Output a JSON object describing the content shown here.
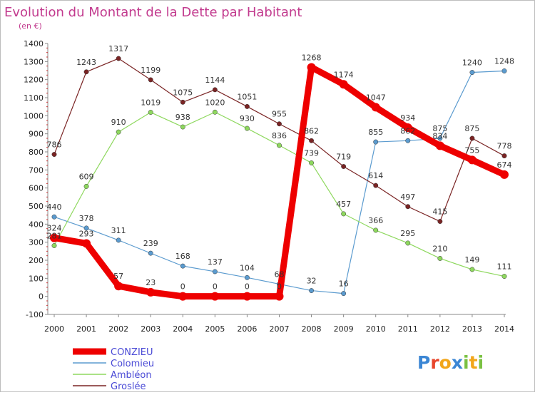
{
  "chart_data": {
    "type": "line",
    "title": "Evolution du Montant de la Dette par Habitant",
    "subtitle": "(en €)",
    "x": [
      "2000",
      "2001",
      "2002",
      "2003",
      "2004",
      "2005",
      "2006",
      "2007",
      "2008",
      "2009",
      "2010",
      "2011",
      "2012",
      "2013",
      "2014"
    ],
    "ylim": [
      -100,
      1400
    ],
    "yticks": [
      "-100",
      "0",
      "100",
      "200",
      "300",
      "400",
      "500",
      "600",
      "700",
      "800",
      "900",
      "1000",
      "1100",
      "1200",
      "1300",
      "1400"
    ],
    "grid": false,
    "legend_position": "bottom-left",
    "series": [
      {
        "name": "Colomieu",
        "color": "#5b9bcf",
        "values": [
          440,
          378,
          311,
          239,
          168,
          137,
          104,
          68,
          32,
          16,
          855,
          862,
          875,
          1240,
          1248
        ]
      },
      {
        "name": "Ambléon",
        "color": "#8ed85e",
        "values": [
          281,
          609,
          910,
          1019,
          938,
          1020,
          930,
          836,
          739,
          457,
          366,
          295,
          210,
          149,
          111
        ]
      },
      {
        "name": "Groslée",
        "color": "#7a2424",
        "values": [
          786,
          1243,
          1317,
          1199,
          1075,
          1144,
          1051,
          955,
          862,
          719,
          614,
          497,
          415,
          875,
          778
        ]
      },
      {
        "name": "CONZIEU",
        "color": "#ee0000",
        "values": [
          324,
          293,
          57,
          23,
          0,
          0,
          0,
          0,
          1268,
          1174,
          1047,
          934,
          834,
          755,
          674
        ]
      }
    ],
    "legend": [
      "CONZIEU",
      "Colomieu",
      "Ambléon",
      "Groslée"
    ]
  },
  "logo": {
    "text": "Proxiti",
    "letters": [
      "P",
      "r",
      "o",
      "x",
      "i",
      "t",
      "i"
    ],
    "colors": [
      "#3b86d4",
      "#e8462c",
      "#f2a61a",
      "#3b86d4",
      "#7ac142",
      "#f2a61a",
      "#7ac142"
    ]
  }
}
